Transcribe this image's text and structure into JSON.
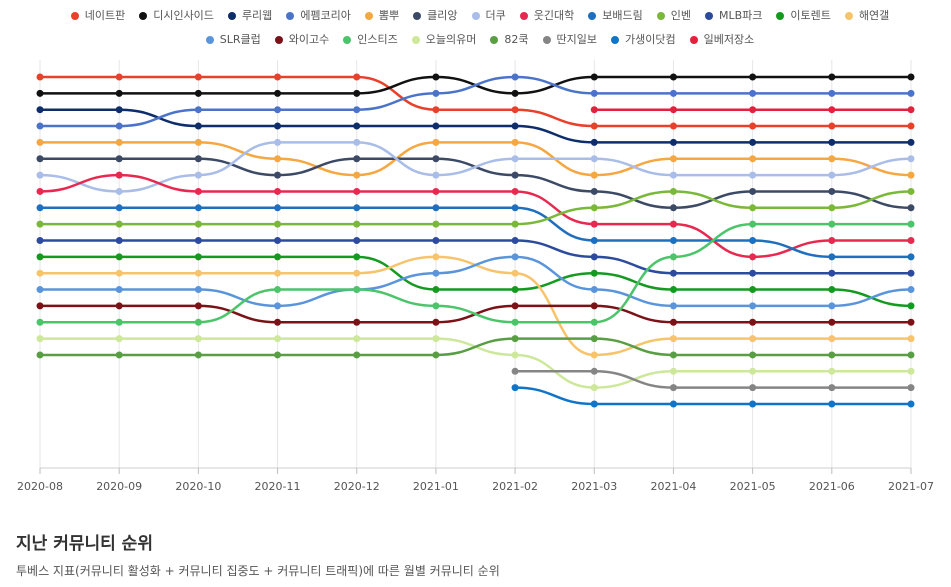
{
  "chart_data": {
    "type": "line",
    "title": "",
    "xlabel": "",
    "ylabel": "",
    "x": [
      "2020-08",
      "2020-09",
      "2020-10",
      "2020-11",
      "2020-12",
      "2021-01",
      "2021-02",
      "2021-03",
      "2021-04",
      "2021-05",
      "2021-06",
      "2021-07"
    ],
    "ylim": [
      1,
      25
    ],
    "y_inverted": true,
    "y_tick_labels_shown": false,
    "grid": "vertical",
    "legend_position": "top",
    "series": [
      {
        "name": "네이트판",
        "color": "#e8402a",
        "values": [
          1,
          1,
          1,
          1,
          1,
          3,
          3,
          4,
          4,
          4,
          4,
          4
        ]
      },
      {
        "name": "디시인사이드",
        "color": "#111111",
        "values": [
          2,
          2,
          2,
          2,
          2,
          1,
          2,
          1,
          1,
          1,
          1,
          1
        ]
      },
      {
        "name": "루리웹",
        "color": "#0d2d6b",
        "values": [
          3,
          3,
          4,
          4,
          4,
          4,
          4,
          5,
          5,
          5,
          5,
          5
        ]
      },
      {
        "name": "에펨코리아",
        "color": "#4b74c9",
        "values": [
          4,
          4,
          3,
          3,
          3,
          2,
          1,
          2,
          2,
          2,
          2,
          2
        ]
      },
      {
        "name": "뽐뿌",
        "color": "#f5a742",
        "values": [
          5,
          5,
          5,
          6,
          7,
          5,
          5,
          7,
          6,
          6,
          6,
          7
        ]
      },
      {
        "name": "클리앙",
        "color": "#3c4a66",
        "values": [
          6,
          6,
          6,
          7,
          6,
          6,
          7,
          8,
          9,
          8,
          8,
          9
        ]
      },
      {
        "name": "더쿠",
        "color": "#a9bde8",
        "values": [
          7,
          8,
          7,
          5,
          5,
          7,
          6,
          6,
          7,
          7,
          7,
          6
        ]
      },
      {
        "name": "웃긴대학",
        "color": "#e8294f",
        "values": [
          8,
          7,
          8,
          8,
          8,
          8,
          8,
          10,
          10,
          12,
          11,
          11
        ]
      },
      {
        "name": "보배드림",
        "color": "#1f6fbf",
        "values": [
          9,
          9,
          9,
          9,
          9,
          9,
          9,
          11,
          11,
          11,
          12,
          12
        ]
      },
      {
        "name": "인벤",
        "color": "#7ab83a",
        "values": [
          10,
          10,
          10,
          10,
          10,
          10,
          10,
          9,
          8,
          9,
          9,
          8
        ]
      },
      {
        "name": "MLB파크",
        "color": "#2c4a9e",
        "values": [
          11,
          11,
          11,
          11,
          11,
          11,
          11,
          12,
          13,
          13,
          13,
          13
        ]
      },
      {
        "name": "이토렌트",
        "color": "#149a1f",
        "values": [
          12,
          12,
          12,
          12,
          12,
          14,
          14,
          13,
          14,
          14,
          14,
          15
        ]
      },
      {
        "name": "해연갤",
        "color": "#f7c46b",
        "values": [
          13,
          13,
          13,
          13,
          13,
          12,
          13,
          18,
          17,
          17,
          17,
          17
        ]
      },
      {
        "name": "SLR클럽",
        "color": "#5a95db",
        "values": [
          14,
          14,
          14,
          15,
          14,
          13,
          12,
          14,
          15,
          15,
          15,
          14
        ]
      },
      {
        "name": "와이고수",
        "color": "#7a1217",
        "values": [
          15,
          15,
          15,
          16,
          16,
          16,
          15,
          15,
          16,
          16,
          16,
          16
        ]
      },
      {
        "name": "인스티즈",
        "color": "#4cc46a",
        "values": [
          16,
          16,
          16,
          14,
          14,
          15,
          16,
          16,
          12,
          10,
          10,
          10
        ]
      },
      {
        "name": "오늘의유머",
        "color": "#cde89a",
        "values": [
          17,
          17,
          17,
          17,
          17,
          17,
          18,
          20,
          19,
          19,
          19,
          19
        ]
      },
      {
        "name": "82쿡",
        "color": "#5a9e44",
        "values": [
          18,
          18,
          18,
          18,
          18,
          18,
          17,
          17,
          18,
          18,
          18,
          18
        ]
      },
      {
        "name": "딴지일보",
        "color": "#858585",
        "values": [
          null,
          null,
          null,
          null,
          null,
          null,
          19,
          19,
          20,
          20,
          20,
          20
        ]
      },
      {
        "name": "가생이닷컴",
        "color": "#1075c8",
        "values": [
          null,
          null,
          null,
          null,
          null,
          null,
          20,
          21,
          21,
          21,
          21,
          21
        ]
      },
      {
        "name": "일베저장소",
        "color": "#e3203d",
        "values": [
          null,
          null,
          null,
          null,
          null,
          null,
          null,
          3,
          3,
          3,
          3,
          3
        ]
      }
    ]
  },
  "footer": {
    "title": "지난 커뮤니티 순위",
    "subtitle": "투베스 지표(커뮤니티 활성화 + 커뮤니티 집중도 + 커뮤니티 트래픽)에 따른 월별 커뮤니티 순위"
  }
}
